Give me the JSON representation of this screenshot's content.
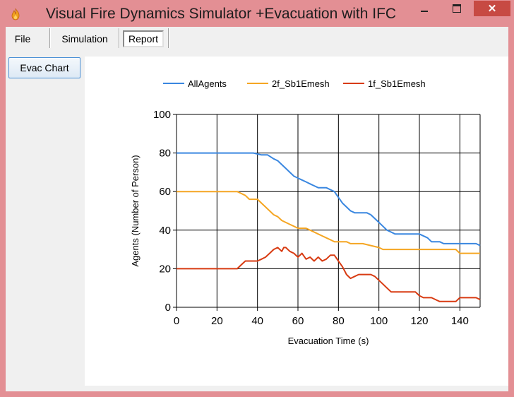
{
  "window": {
    "title": "Visual Fire Dynamics Simulator +Evacuation with IFC",
    "icon": "flame-icon",
    "close_glyph": "✕"
  },
  "menu": {
    "file": "File",
    "simulation": "Simulation",
    "report": "Report"
  },
  "side": {
    "evac_button": "Evac Chart"
  },
  "colors": {
    "all_agents": "#3a87e0",
    "floor2": "#f5a623",
    "floor1": "#d83b12"
  },
  "chart_data": {
    "type": "line",
    "xlabel": "Evacuation Time (s)",
    "ylabel": "Agents (Number of Person)",
    "xlim": [
      0,
      150
    ],
    "ylim": [
      0,
      100
    ],
    "xticks": [
      0,
      20,
      40,
      60,
      80,
      100,
      120,
      140
    ],
    "yticks": [
      0,
      20,
      40,
      60,
      80,
      100
    ],
    "grid": true,
    "legend_position": "top",
    "series": [
      {
        "name": "AllAgents",
        "color": "#3a87e0",
        "points": [
          [
            0,
            80
          ],
          [
            38,
            80
          ],
          [
            42,
            79
          ],
          [
            45,
            79
          ],
          [
            48,
            77
          ],
          [
            50,
            76
          ],
          [
            52,
            74
          ],
          [
            54,
            72
          ],
          [
            56,
            70
          ],
          [
            58,
            68
          ],
          [
            60,
            67
          ],
          [
            62,
            66
          ],
          [
            64,
            65
          ],
          [
            66,
            64
          ],
          [
            68,
            63
          ],
          [
            70,
            62
          ],
          [
            74,
            62
          ],
          [
            76,
            61
          ],
          [
            78,
            60
          ],
          [
            80,
            57
          ],
          [
            82,
            54
          ],
          [
            84,
            52
          ],
          [
            86,
            50
          ],
          [
            88,
            49
          ],
          [
            94,
            49
          ],
          [
            96,
            48
          ],
          [
            98,
            46
          ],
          [
            100,
            44
          ],
          [
            102,
            42
          ],
          [
            104,
            40
          ],
          [
            106,
            39
          ],
          [
            108,
            38
          ],
          [
            118,
            38
          ],
          [
            120,
            38
          ],
          [
            124,
            36
          ],
          [
            126,
            34
          ],
          [
            130,
            34
          ],
          [
            132,
            33
          ],
          [
            148,
            33
          ],
          [
            150,
            32
          ]
        ]
      },
      {
        "name": "2f_Sb1Emesh",
        "color": "#f5a623",
        "points": [
          [
            0,
            60
          ],
          [
            30,
            60
          ],
          [
            32,
            59
          ],
          [
            34,
            58
          ],
          [
            36,
            56
          ],
          [
            40,
            56
          ],
          [
            42,
            54
          ],
          [
            44,
            52
          ],
          [
            46,
            50
          ],
          [
            48,
            48
          ],
          [
            50,
            47
          ],
          [
            52,
            45
          ],
          [
            54,
            44
          ],
          [
            56,
            43
          ],
          [
            58,
            42
          ],
          [
            60,
            41
          ],
          [
            64,
            41
          ],
          [
            66,
            40
          ],
          [
            68,
            39
          ],
          [
            70,
            38
          ],
          [
            72,
            37
          ],
          [
            74,
            36
          ],
          [
            76,
            35
          ],
          [
            78,
            34
          ],
          [
            84,
            34
          ],
          [
            86,
            33
          ],
          [
            92,
            33
          ],
          [
            96,
            32
          ],
          [
            100,
            31
          ],
          [
            102,
            30
          ],
          [
            138,
            30
          ],
          [
            140,
            28
          ],
          [
            150,
            28
          ]
        ]
      },
      {
        "name": "1f_Sb1Emesh",
        "color": "#d83b12",
        "points": [
          [
            0,
            20
          ],
          [
            30,
            20
          ],
          [
            32,
            22
          ],
          [
            34,
            24
          ],
          [
            40,
            24
          ],
          [
            42,
            25
          ],
          [
            44,
            26
          ],
          [
            46,
            28
          ],
          [
            48,
            30
          ],
          [
            50,
            31
          ],
          [
            52,
            29
          ],
          [
            53,
            31
          ],
          [
            54,
            31
          ],
          [
            56,
            29
          ],
          [
            58,
            28
          ],
          [
            60,
            26
          ],
          [
            62,
            28
          ],
          [
            64,
            25
          ],
          [
            66,
            26
          ],
          [
            68,
            24
          ],
          [
            70,
            26
          ],
          [
            72,
            24
          ],
          [
            74,
            25
          ],
          [
            76,
            27
          ],
          [
            78,
            27
          ],
          [
            80,
            24
          ],
          [
            82,
            21
          ],
          [
            84,
            17
          ],
          [
            86,
            15
          ],
          [
            88,
            16
          ],
          [
            90,
            17
          ],
          [
            96,
            17
          ],
          [
            98,
            16
          ],
          [
            100,
            14
          ],
          [
            102,
            12
          ],
          [
            104,
            10
          ],
          [
            106,
            8
          ],
          [
            118,
            8
          ],
          [
            120,
            6
          ],
          [
            122,
            5
          ],
          [
            126,
            5
          ],
          [
            128,
            4
          ],
          [
            130,
            3
          ],
          [
            138,
            3
          ],
          [
            140,
            5
          ],
          [
            148,
            5
          ],
          [
            150,
            4
          ]
        ]
      }
    ]
  }
}
